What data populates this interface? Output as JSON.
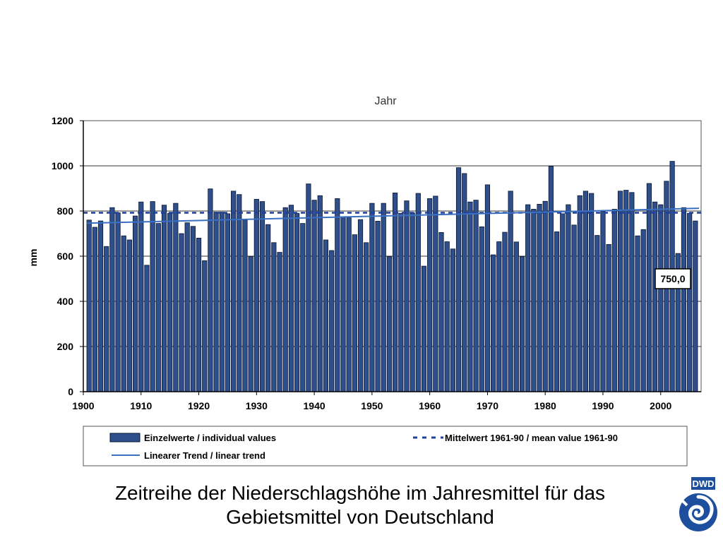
{
  "chart_data": {
    "type": "bar",
    "title": "Jahr",
    "xlabel": "",
    "ylabel": "mm",
    "ylim": [
      0,
      1200
    ],
    "y_ticks": [
      0,
      200,
      400,
      600,
      800,
      1000,
      1200
    ],
    "x_ticks": [
      1900,
      1910,
      1920,
      1930,
      1940,
      1950,
      1960,
      1970,
      1980,
      1990,
      2000
    ],
    "x": [
      1901,
      1902,
      1903,
      1904,
      1905,
      1906,
      1907,
      1908,
      1909,
      1910,
      1911,
      1912,
      1913,
      1914,
      1915,
      1916,
      1917,
      1918,
      1919,
      1920,
      1921,
      1922,
      1923,
      1924,
      1925,
      1926,
      1927,
      1928,
      1929,
      1930,
      1931,
      1932,
      1933,
      1934,
      1935,
      1936,
      1937,
      1938,
      1939,
      1940,
      1941,
      1942,
      1943,
      1944,
      1945,
      1946,
      1947,
      1948,
      1949,
      1950,
      1951,
      1952,
      1953,
      1954,
      1955,
      1956,
      1957,
      1958,
      1959,
      1960,
      1961,
      1962,
      1963,
      1964,
      1965,
      1966,
      1967,
      1968,
      1969,
      1970,
      1971,
      1972,
      1973,
      1974,
      1975,
      1976,
      1977,
      1978,
      1979,
      1980,
      1981,
      1982,
      1983,
      1984,
      1985,
      1986,
      1987,
      1988,
      1989,
      1990,
      1991,
      1992,
      1993,
      1994,
      1995,
      1996,
      1997,
      1998,
      1999,
      2000,
      2001,
      2002,
      2003,
      2004,
      2005,
      2006
    ],
    "series": [
      {
        "name": "Einzelwerte / individual values",
        "values": [
          760,
          728,
          756,
          643,
          815,
          792,
          690,
          672,
          778,
          840,
          560,
          842,
          745,
          826,
          790,
          834,
          700,
          748,
          732,
          680,
          580,
          898,
          795,
          795,
          788,
          888,
          873,
          760,
          598,
          852,
          842,
          740,
          660,
          617,
          815,
          826,
          790,
          745,
          920,
          848,
          868,
          672,
          625,
          855,
          772,
          770,
          695,
          762,
          660,
          834,
          755,
          834,
          598,
          880,
          790,
          845,
          792,
          878,
          556,
          855,
          866,
          705,
          664,
          632,
          992,
          966,
          840,
          848,
          730,
          916,
          606,
          664,
          706,
          888,
          663,
          598,
          828,
          808,
          830,
          843,
          998,
          708,
          788,
          828,
          738,
          868,
          888,
          878,
          692,
          798,
          652,
          808,
          888,
          892,
          882,
          690,
          718,
          922,
          840,
          828,
          932,
          1020,
          612,
          815,
          790,
          756
        ]
      }
    ],
    "mean_1961_90": 792,
    "mean_label": "Mittelwert 1961-90 / mean value 1961-90",
    "trend": {
      "start": 746,
      "end": 812,
      "label": "Linearer Trend / linear trend"
    },
    "annotation": "750,0",
    "legend_placement": "bottom",
    "colors": {
      "bar_fill": "#2e4f8c",
      "bar_stroke": "#0a1530",
      "mean_line": "#1f3f9e",
      "trend_line": "#3a6fc2",
      "grid": "#333333"
    }
  },
  "caption": {
    "line1": "Zeitreihe der Niederschlagshöhe im Jahresmittel für das",
    "line2": "Gebietsmittel von Deutschland"
  },
  "logo": {
    "text": "DWD",
    "color": "#1d4f9e"
  }
}
